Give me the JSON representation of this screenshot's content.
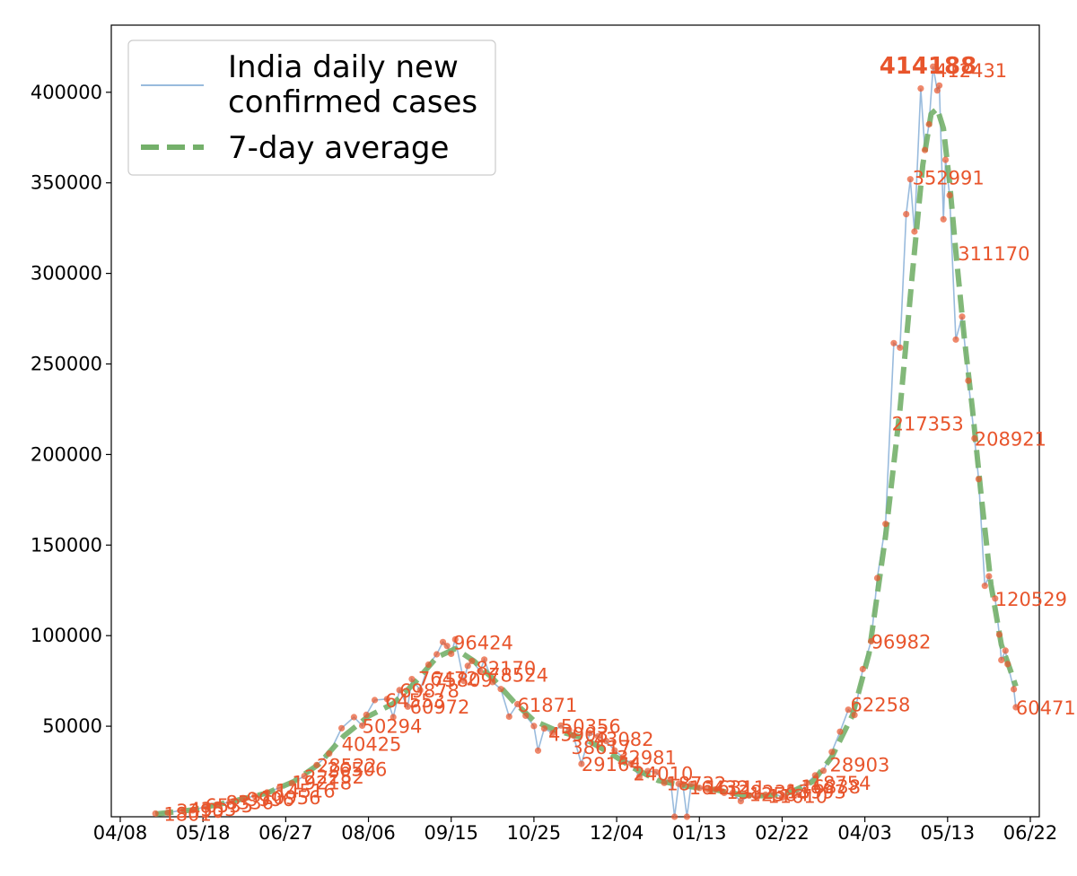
{
  "chart_data": {
    "type": "line",
    "title": "",
    "xlabel": "",
    "ylabel": "",
    "x_ticks": [
      "04/08",
      "05/18",
      "06/27",
      "08/06",
      "09/15",
      "10/25",
      "12/04",
      "01/13",
      "02/22",
      "04/03",
      "05/13",
      "06/22"
    ],
    "y_ticks": [
      "50000",
      "100000",
      "150000",
      "200000",
      "250000",
      "300000",
      "350000",
      "400000"
    ],
    "ylim": [
      0,
      425000
    ],
    "grid": false,
    "legend": {
      "placement": "top-left",
      "entries": [
        {
          "lines": [
            "India daily new",
            "confirmed cases"
          ],
          "color": "#99bbdd",
          "style": "solid"
        },
        {
          "lines": [
            "7-day average"
          ],
          "color": "#74b06a",
          "style": "dashed"
        }
      ]
    },
    "colors": {
      "daily": "#99bbdd",
      "average": "#74b06a",
      "points": "#e8552c"
    },
    "series": [
      {
        "name": "India daily new confirmed cases",
        "style": "line+markers",
        "data": [
          [
            "2020-04-25",
            1800
          ],
          [
            "2020-05-01",
            2300
          ],
          [
            "2020-05-07",
            3400
          ],
          [
            "2020-05-13",
            3500
          ],
          [
            "2020-05-19",
            5600
          ],
          [
            "2020-05-25",
            6800
          ],
          [
            "2020-05-31",
            8300
          ],
          [
            "2020-06-06",
            9900
          ],
          [
            "2020-06-12",
            11500
          ],
          [
            "2020-06-18",
            13500
          ],
          [
            "2020-06-24",
            16000
          ],
          [
            "2020-06-30",
            18500
          ],
          [
            "2020-07-06",
            22500
          ],
          [
            "2020-07-12",
            28600
          ],
          [
            "2020-07-18",
            34900
          ],
          [
            "2020-07-24",
            48900
          ],
          [
            "2020-07-30",
            55000
          ],
          [
            "2020-08-03",
            50300
          ],
          [
            "2020-08-05",
            56300
          ],
          [
            "2020-08-09",
            64400
          ],
          [
            "2020-08-15",
            65000
          ],
          [
            "2020-08-18",
            55000
          ],
          [
            "2020-08-21",
            69900
          ],
          [
            "2020-08-25",
            60800
          ],
          [
            "2020-08-27",
            76000
          ],
          [
            "2020-08-31",
            69900
          ],
          [
            "2020-09-04",
            84000
          ],
          [
            "2020-09-08",
            89700
          ],
          [
            "2020-09-11",
            96500
          ],
          [
            "2020-09-13",
            94300
          ],
          [
            "2020-09-15",
            90000
          ],
          [
            "2020-09-17",
            97900
          ],
          [
            "2020-09-21",
            75000
          ],
          [
            "2020-09-23",
            83300
          ],
          [
            "2020-09-25",
            86000
          ],
          [
            "2020-09-29",
            80500
          ],
          [
            "2020-10-01",
            86800
          ],
          [
            "2020-10-05",
            74400
          ],
          [
            "2020-10-09",
            70500
          ],
          [
            "2020-10-13",
            55300
          ],
          [
            "2020-10-17",
            62200
          ],
          [
            "2020-10-21",
            55800
          ],
          [
            "2020-10-25",
            50100
          ],
          [
            "2020-10-27",
            36500
          ],
          [
            "2020-10-30",
            48700
          ],
          [
            "2020-11-03",
            46200
          ],
          [
            "2020-11-07",
            50400
          ],
          [
            "2020-11-11",
            47900
          ],
          [
            "2020-11-13",
            44900
          ],
          [
            "2020-11-17",
            29200
          ],
          [
            "2020-11-21",
            46200
          ],
          [
            "2020-11-25",
            44400
          ],
          [
            "2020-11-29",
            41800
          ],
          [
            "2020-12-03",
            36600
          ],
          [
            "2020-12-07",
            32900
          ],
          [
            "2020-12-11",
            29400
          ],
          [
            "2020-12-15",
            22100
          ],
          [
            "2020-12-19",
            25200
          ],
          [
            "2020-12-23",
            24700
          ],
          [
            "2020-12-27",
            18700
          ],
          [
            "2020-12-30",
            20500
          ],
          [
            "2021-01-01",
            0
          ],
          [
            "2021-01-03",
            18200
          ],
          [
            "2021-01-05",
            18000
          ],
          [
            "2021-01-07",
            0
          ],
          [
            "2021-01-09",
            18100
          ],
          [
            "2021-01-13",
            15900
          ],
          [
            "2021-01-17",
            15100
          ],
          [
            "2021-01-21",
            15200
          ],
          [
            "2021-01-25",
            13200
          ],
          [
            "2021-01-29",
            13100
          ],
          [
            "2021-02-02",
            8600
          ],
          [
            "2021-02-06",
            11700
          ],
          [
            "2021-02-10",
            11100
          ],
          [
            "2021-02-14",
            12200
          ],
          [
            "2021-02-18",
            13200
          ],
          [
            "2021-02-22",
            10600
          ],
          [
            "2021-02-26",
            16500
          ],
          [
            "2021-03-02",
            12300
          ],
          [
            "2021-03-06",
            18600
          ],
          [
            "2021-03-10",
            22900
          ],
          [
            "2021-03-14",
            25400
          ],
          [
            "2021-03-18",
            35800
          ],
          [
            "2021-03-22",
            47000
          ],
          [
            "2021-03-26",
            59100
          ],
          [
            "2021-03-29",
            56200
          ],
          [
            "2021-04-02",
            81500
          ],
          [
            "2021-04-06",
            96900
          ],
          [
            "2021-04-09",
            131800
          ],
          [
            "2021-04-13",
            161700
          ],
          [
            "2021-04-17",
            261500
          ],
          [
            "2021-04-20",
            259000
          ],
          [
            "2021-04-23",
            332700
          ],
          [
            "2021-04-25",
            352000
          ],
          [
            "2021-04-27",
            323100
          ],
          [
            "2021-04-30",
            402100
          ],
          [
            "2021-05-02",
            368100
          ],
          [
            "2021-05-04",
            382300
          ],
          [
            "2021-05-06",
            414188
          ],
          [
            "2021-05-08",
            401000
          ],
          [
            "2021-05-09",
            403700
          ],
          [
            "2021-05-11",
            329900
          ],
          [
            "2021-05-12",
            362700
          ],
          [
            "2021-05-14",
            343100
          ],
          [
            "2021-05-17",
            263500
          ],
          [
            "2021-05-20",
            276100
          ],
          [
            "2021-05-23",
            240800
          ],
          [
            "2021-05-26",
            208900
          ],
          [
            "2021-05-28",
            186400
          ],
          [
            "2021-05-31",
            127500
          ],
          [
            "2021-06-02",
            132800
          ],
          [
            "2021-06-05",
            120500
          ],
          [
            "2021-06-07",
            100600
          ],
          [
            "2021-06-08",
            86500
          ],
          [
            "2021-06-10",
            91700
          ],
          [
            "2021-06-11",
            84300
          ],
          [
            "2021-06-14",
            70400
          ],
          [
            "2021-06-15",
            60471
          ]
        ]
      },
      {
        "name": "7-day average",
        "style": "dashed",
        "data": [
          [
            "2020-04-25",
            1500
          ],
          [
            "2020-05-13",
            3800
          ],
          [
            "2020-06-01",
            8400
          ],
          [
            "2020-06-18",
            13100
          ],
          [
            "2020-07-01",
            19500
          ],
          [
            "2020-07-13",
            29000
          ],
          [
            "2020-07-25",
            44500
          ],
          [
            "2020-08-06",
            55500
          ],
          [
            "2020-08-18",
            62500
          ],
          [
            "2020-08-28",
            73500
          ],
          [
            "2020-09-08",
            88000
          ],
          [
            "2020-09-17",
            92800
          ],
          [
            "2020-09-26",
            86000
          ],
          [
            "2020-10-05",
            76500
          ],
          [
            "2020-10-15",
            63800
          ],
          [
            "2020-10-25",
            53000
          ],
          [
            "2020-11-05",
            47500
          ],
          [
            "2020-11-18",
            43500
          ],
          [
            "2020-12-01",
            35000
          ],
          [
            "2020-12-12",
            27000
          ],
          [
            "2020-12-24",
            20000
          ],
          [
            "2021-01-06",
            17000
          ],
          [
            "2021-01-20",
            15000
          ],
          [
            "2021-02-03",
            12000
          ],
          [
            "2021-02-15",
            11500
          ],
          [
            "2021-02-26",
            13500
          ],
          [
            "2021-03-09",
            19500
          ],
          [
            "2021-03-18",
            33000
          ],
          [
            "2021-03-28",
            56000
          ],
          [
            "2021-04-05",
            90000
          ],
          [
            "2021-04-13",
            155000
          ],
          [
            "2021-04-20",
            225000
          ],
          [
            "2021-04-26",
            300000
          ],
          [
            "2021-05-01",
            360000
          ],
          [
            "2021-05-05",
            388000
          ],
          [
            "2021-05-08",
            391000
          ],
          [
            "2021-05-11",
            380000
          ],
          [
            "2021-05-14",
            350000
          ],
          [
            "2021-05-17",
            312000
          ],
          [
            "2021-05-21",
            265000
          ],
          [
            "2021-05-25",
            225000
          ],
          [
            "2021-05-29",
            180000
          ],
          [
            "2021-06-03",
            128000
          ],
          [
            "2021-06-08",
            95000
          ],
          [
            "2021-06-12",
            82000
          ],
          [
            "2021-06-15",
            72000
          ]
        ]
      }
    ],
    "annotations": [
      {
        "text": "1801",
        "x": "2020-04-29",
        "y": 1800
      },
      {
        "text": "3390",
        "x": "2020-05-05",
        "y": 3400
      },
      {
        "text": "4353",
        "x": "2020-05-11",
        "y": 4400
      },
      {
        "text": "6535",
        "x": "2020-05-19",
        "y": 6500
      },
      {
        "text": "8336",
        "x": "2020-05-29",
        "y": 8300
      },
      {
        "text": "9996",
        "x": "2020-06-08",
        "y": 9900
      },
      {
        "text": "10956",
        "x": "2020-06-15",
        "y": 11000
      },
      {
        "text": "14516",
        "x": "2020-06-22",
        "y": 14500
      },
      {
        "text": "19218",
        "x": "2020-06-30",
        "y": 19200
      },
      {
        "text": "22252",
        "x": "2020-07-06",
        "y": 22200
      },
      {
        "text": "28522",
        "x": "2020-07-12",
        "y": 28500
      },
      {
        "text": "26506",
        "x": "2020-07-17",
        "y": 26500
      },
      {
        "text": "40425",
        "x": "2020-07-24",
        "y": 40400
      },
      {
        "text": "50294",
        "x": "2020-08-03",
        "y": 50300
      },
      {
        "text": "64553",
        "x": "2020-08-14",
        "y": 64500
      },
      {
        "text": "69878",
        "x": "2020-08-21",
        "y": 69900
      },
      {
        "text": "60972",
        "x": "2020-08-26",
        "y": 61000
      },
      {
        "text": "76472",
        "x": "2020-08-30",
        "y": 76500
      },
      {
        "text": "75809",
        "x": "2020-09-06",
        "y": 75800
      },
      {
        "text": "96424",
        "x": "2020-09-16",
        "y": 96400
      },
      {
        "text": "82170",
        "x": "2020-09-27",
        "y": 82200
      },
      {
        "text": "78524",
        "x": "2020-10-03",
        "y": 78500
      },
      {
        "text": "61871",
        "x": "2020-10-17",
        "y": 61900
      },
      {
        "text": "50356",
        "x": "2020-11-07",
        "y": 50400
      },
      {
        "text": "45903",
        "x": "2020-11-01",
        "y": 45900
      },
      {
        "text": "43082",
        "x": "2020-11-23",
        "y": 43100
      },
      {
        "text": "38617",
        "x": "2020-11-12",
        "y": 38600
      },
      {
        "text": "32981",
        "x": "2020-12-04",
        "y": 33000
      },
      {
        "text": "29164",
        "x": "2020-11-17",
        "y": 29200
      },
      {
        "text": "24010",
        "x": "2020-12-12",
        "y": 24000
      },
      {
        "text": "18732",
        "x": "2020-12-28",
        "y": 18700
      },
      {
        "text": "16432",
        "x": "2021-01-08",
        "y": 16400
      },
      {
        "text": "16311",
        "x": "2021-01-16",
        "y": 16300
      },
      {
        "text": "13823",
        "x": "2021-01-26",
        "y": 13800
      },
      {
        "text": "12584",
        "x": "2021-02-06",
        "y": 12600
      },
      {
        "text": "11610",
        "x": "2021-02-15",
        "y": 11600
      },
      {
        "text": "13993",
        "x": "2021-02-24",
        "y": 14000
      },
      {
        "text": "16838",
        "x": "2021-03-03",
        "y": 16800
      },
      {
        "text": "18754",
        "x": "2021-03-08",
        "y": 18800
      },
      {
        "text": "28903",
        "x": "2021-03-17",
        "y": 28900
      },
      {
        "text": "62258",
        "x": "2021-03-27",
        "y": 62300
      },
      {
        "text": "96982",
        "x": "2021-04-06",
        "y": 97000
      },
      {
        "text": "217353",
        "x": "2021-04-16",
        "y": 217400
      },
      {
        "text": "352991",
        "x": "2021-04-26",
        "y": 353000
      },
      {
        "text": "412431",
        "x": "2021-05-07",
        "y": 412400
      },
      {
        "text": "311170",
        "x": "2021-05-18",
        "y": 311200
      },
      {
        "text": "208921",
        "x": "2021-05-26",
        "y": 208900
      },
      {
        "text": "120529",
        "x": "2021-06-05",
        "y": 120500
      },
      {
        "text": "60471",
        "x": "2021-06-15",
        "y": 60500
      }
    ],
    "peak_label": {
      "text": "414188",
      "x": "2021-05-06",
      "y": 414188
    }
  }
}
